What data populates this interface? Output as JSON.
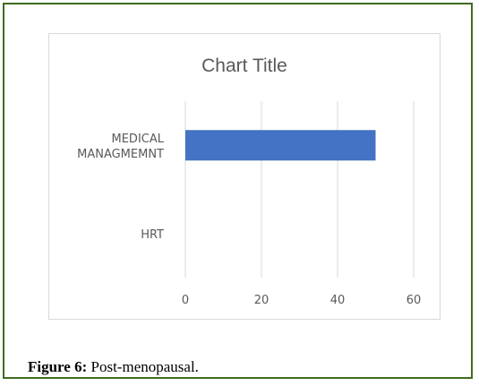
{
  "caption": {
    "label": "Figure 6:",
    "text": "Post-menopausal."
  },
  "colors": {
    "frame_border": "#3f6b1f",
    "bar": "#4472c4",
    "gridline": "#d9d9d9",
    "text": "#595959"
  },
  "chart_data": {
    "type": "bar",
    "orientation": "horizontal",
    "title": "Chart Title",
    "categories": [
      [
        "MEDICAL",
        "MANAGMEMNT"
      ],
      [
        "HRT"
      ]
    ],
    "values": [
      50,
      0
    ],
    "xlabel": "",
    "ylabel": "",
    "xlim": [
      0,
      60
    ],
    "xticks": [
      "0",
      "20",
      "40",
      "60"
    ],
    "grid": true,
    "legend": "none"
  }
}
